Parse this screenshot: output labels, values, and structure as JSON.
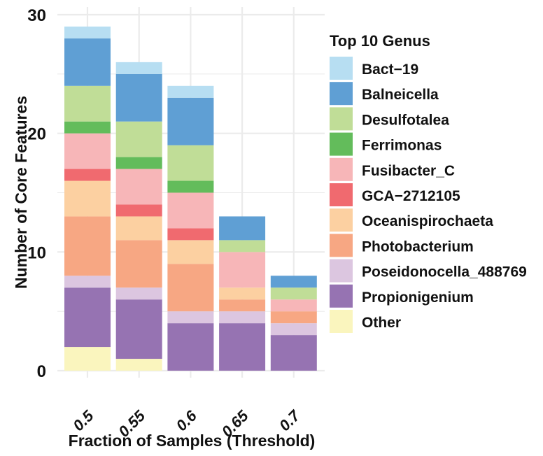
{
  "chart_data": {
    "type": "bar",
    "stacked": true,
    "title": "",
    "xlabel": "Fraction of Samples (Threshold)",
    "ylabel": "Number of Core Features",
    "ylim": [
      0,
      30
    ],
    "yticks": [
      0,
      10,
      20,
      30
    ],
    "grid": true,
    "categories": [
      "0.5",
      "0.55",
      "0.6",
      "0.65",
      "0.7"
    ],
    "legend": {
      "title": "Top 10 Genus",
      "position": "right"
    },
    "series": [
      {
        "name": "Other",
        "color": "#FAF5BE",
        "values": [
          2,
          1,
          0,
          0,
          0
        ]
      },
      {
        "name": "Propionigenium",
        "color": "#9673B2",
        "values": [
          5,
          5,
          4,
          4,
          3
        ]
      },
      {
        "name": "Poseidonocella_488769",
        "color": "#DCC6E0",
        "values": [
          1,
          1,
          1,
          1,
          1
        ]
      },
      {
        "name": "Photobacterium",
        "color": "#F7A783",
        "values": [
          5,
          4,
          4,
          1,
          1
        ]
      },
      {
        "name": "Oceanispirochaeta",
        "color": "#FCD0A1",
        "values": [
          3,
          2,
          2,
          1,
          0
        ]
      },
      {
        "name": "GCA−2712105",
        "color": "#F06A6F",
        "values": [
          1,
          1,
          1,
          0,
          0
        ]
      },
      {
        "name": "Fusibacter_C",
        "color": "#F7B6B8",
        "values": [
          3,
          3,
          3,
          3,
          1
        ]
      },
      {
        "name": "Ferrimonas",
        "color": "#63BC5B",
        "values": [
          1,
          1,
          1,
          0,
          0
        ]
      },
      {
        "name": "Desulfotalea",
        "color": "#C0DD97",
        "values": [
          3,
          3,
          3,
          1,
          1
        ]
      },
      {
        "name": "Balneicella",
        "color": "#5F9FD4",
        "values": [
          4,
          4,
          4,
          2,
          1
        ]
      },
      {
        "name": "Bact−19",
        "color": "#B7DEF2",
        "values": [
          1,
          1,
          1,
          0,
          0
        ]
      }
    ],
    "legend_order": [
      "Bact−19",
      "Balneicella",
      "Desulfotalea",
      "Ferrimonas",
      "Fusibacter_C",
      "GCA−2712105",
      "Oceanispirochaeta",
      "Photobacterium",
      "Poseidonocella_488769",
      "Propionigenium",
      "Other"
    ],
    "totals": [
      29,
      26,
      24,
      13,
      8
    ]
  }
}
